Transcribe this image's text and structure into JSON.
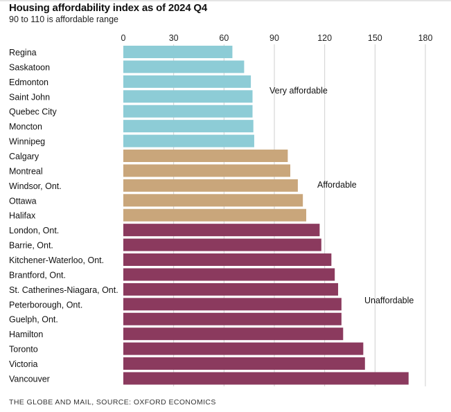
{
  "header": {
    "title": "Housing affordability index as of 2024 Q4",
    "subtitle": "90 to 110 is affordable range"
  },
  "footer": {
    "source": "THE GLOBE AND MAIL, SOURCE: OXFORD ECONOMICS"
  },
  "colors": {
    "very_affordable": "#8dccd6",
    "affordable": "#c9a67b",
    "unaffordable": "#8b3a5e",
    "gridline": "#cfcfcf"
  },
  "chart_data": {
    "type": "bar",
    "orientation": "horizontal",
    "title": "Housing affordability index as of 2024 Q4",
    "subtitle": "90 to 110 is affordable range",
    "xlim": [
      0,
      180
    ],
    "xticks": [
      0,
      30,
      60,
      90,
      120,
      150,
      180
    ],
    "grid": true,
    "categories": [
      "Regina",
      "Saskatoon",
      "Edmonton",
      "Saint John",
      "Quebec City",
      "Moncton",
      "Winnipeg",
      "Calgary",
      "Montreal",
      "Windsor, Ont.",
      "Ottawa",
      "Halifax",
      "London, Ont.",
      "Barrie, Ont.",
      "Kitchener-Waterloo, Ont.",
      "Brantford, Ont.",
      "St. Catherines-Niagara, Ont.",
      "Peterborough, Ont.",
      "Guelph, Ont.",
      "Hamilton",
      "Toronto",
      "Victoria",
      "Vancouver"
    ],
    "values": [
      65,
      72,
      76,
      77,
      77,
      77.5,
      78,
      98,
      99.5,
      104,
      107,
      109,
      117,
      118,
      124,
      126,
      128,
      130,
      130,
      131,
      143,
      144,
      170
    ],
    "groups": [
      "very_affordable",
      "very_affordable",
      "very_affordable",
      "very_affordable",
      "very_affordable",
      "very_affordable",
      "very_affordable",
      "affordable",
      "affordable",
      "affordable",
      "affordable",
      "affordable",
      "unaffordable",
      "unaffordable",
      "unaffordable",
      "unaffordable",
      "unaffordable",
      "unaffordable",
      "unaffordable",
      "unaffordable",
      "unaffordable",
      "unaffordable",
      "unaffordable"
    ],
    "annotations": [
      {
        "text": "Very affordable",
        "group": "very_affordable"
      },
      {
        "text": "Affordable",
        "group": "affordable"
      },
      {
        "text": "Unaffordable",
        "group": "unaffordable"
      }
    ]
  }
}
